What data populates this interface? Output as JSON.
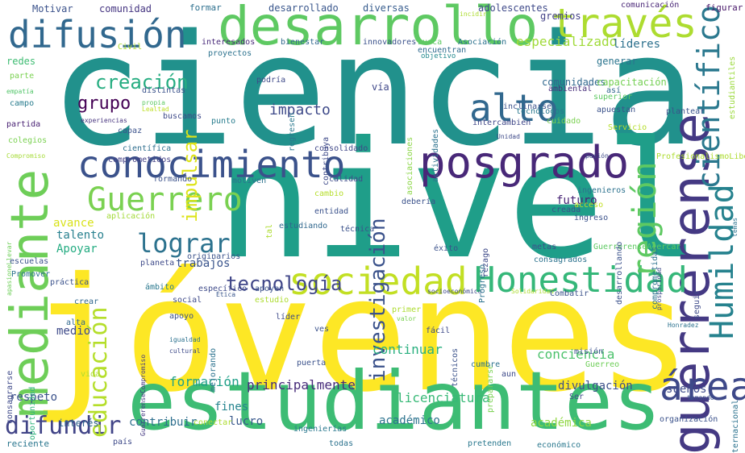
{
  "words": [
    {
      "text": "ciencia",
      "color": "#21918c"
    },
    {
      "text": "nivel",
      "color": "#1f9e89"
    },
    {
      "text": "jóvenes",
      "color": "#fde725"
    },
    {
      "text": "estudiantes",
      "color": "#3dbc74"
    },
    {
      "text": "desarrollo",
      "color": "#5ec962"
    },
    {
      "text": "mediante",
      "color": "#6ece58"
    },
    {
      "text": "conocimiento",
      "color": "#3b528b"
    },
    {
      "text": "difusión",
      "color": "#31688e"
    },
    {
      "text": "través",
      "color": "#addc30"
    },
    {
      "text": "posgrado",
      "color": "#482878"
    },
    {
      "text": "guerrerense",
      "color": "#443983"
    },
    {
      "text": "Guerrero",
      "color": "#7ad151"
    },
    {
      "text": "sociedad",
      "color": "#c2df23"
    },
    {
      "text": "Honestidad",
      "color": "#35b779"
    },
    {
      "text": "Humildad",
      "color": "#26828e"
    },
    {
      "text": "alto",
      "color": "#31688e"
    },
    {
      "text": "científico",
      "color": "#2a788e"
    },
    {
      "text": "región",
      "color": "#5ec962"
    },
    {
      "text": "área",
      "color": "#3e4989"
    },
    {
      "text": "difundir",
      "color": "#414487"
    },
    {
      "text": "lograr",
      "color": "#2c728e"
    },
    {
      "text": "educación",
      "color": "#b5de2b"
    },
    {
      "text": "creación",
      "color": "#26ad81"
    },
    {
      "text": "tecnología",
      "color": "#404688"
    },
    {
      "text": "investigación",
      "color": "#3b528b"
    },
    {
      "text": "impulsar",
      "color": "#dde318"
    },
    {
      "text": "grupo",
      "color": "#440154"
    },
    {
      "text": "especializado",
      "color": "#a0da39"
    },
    {
      "text": "impacto",
      "color": "#3e4a89"
    },
    {
      "text": "formación",
      "color": "#1fa088"
    },
    {
      "text": "principalmente",
      "color": "#472c7a"
    },
    {
      "text": "continuar",
      "color": "#2ab07f"
    },
    {
      "text": "licenciatura",
      "color": "#38b977"
    },
    {
      "text": "divulgación",
      "color": "#3c4f8a"
    },
    {
      "text": "conciencia",
      "color": "#4cc26c"
    },
    {
      "text": "sueños",
      "color": "#3e4c8a"
    },
    {
      "text": "fines",
      "color": "#25848e"
    },
    {
      "text": "respeto",
      "color": "#3b528b"
    },
    {
      "text": "contribuir",
      "color": "#2e6f8e"
    },
    {
      "text": "lucro",
      "color": "#38588c"
    },
    {
      "text": "académico",
      "color": "#2c738e"
    },
    {
      "text": "académica",
      "color": "#90d743"
    },
    {
      "text": "interés",
      "color": "#31668e"
    },
    {
      "text": "futuro",
      "color": "#482475"
    },
    {
      "text": "avance",
      "color": "#d8e219"
    },
    {
      "text": "trabajos",
      "color": "#3a548c"
    },
    {
      "text": "talento",
      "color": "#27808e"
    },
    {
      "text": "Apoyar",
      "color": "#25ac82"
    },
    {
      "text": "medio",
      "color": "#3e4a89"
    },
    {
      "text": "comunidades",
      "color": "#31688e"
    },
    {
      "text": "capacitación",
      "color": "#75d054"
    },
    {
      "text": "gremios",
      "color": "#424086"
    },
    {
      "text": "líderes",
      "color": "#2d718e"
    },
    {
      "text": "generar",
      "color": "#2b748e"
    },
    {
      "text": "vía",
      "color": "#3f4889"
    },
    {
      "text": "Motivar",
      "color": "#3b528b"
    },
    {
      "text": "comunidad",
      "color": "#453581"
    },
    {
      "text": "formar",
      "color": "#2d708e"
    },
    {
      "text": "desarrollado",
      "color": "#39568c"
    },
    {
      "text": "diversas",
      "color": "#365c8d"
    },
    {
      "text": "adolescentes",
      "color": "#3e4989"
    },
    {
      "text": "comunicación",
      "color": "#482576"
    },
    {
      "text": "figurar",
      "color": "#48186a"
    },
    {
      "text": "estudiantiles",
      "color": "#9bd93c"
    },
    {
      "text": "incidir",
      "color": "#addc30"
    },
    {
      "text": "interesados",
      "color": "#482979"
    },
    {
      "text": "bienestar",
      "color": "#31688e"
    },
    {
      "text": "innovadores",
      "color": "#3b528b"
    },
    {
      "text": "Asociación",
      "color": "#2c728e"
    },
    {
      "text": "busca",
      "color": "#5ec962"
    },
    {
      "text": "encuentran",
      "color": "#306a8e"
    },
    {
      "text": "objetivo",
      "color": "#23898e"
    },
    {
      "text": "redes",
      "color": "#3fbc73"
    },
    {
      "text": "parte",
      "color": "#7ad151"
    },
    {
      "text": "empatía",
      "color": "#52c569"
    },
    {
      "text": "campo",
      "color": "#287c8e"
    },
    {
      "text": "partida",
      "color": "#482173"
    },
    {
      "text": "colegios",
      "color": "#7ad151"
    },
    {
      "text": "Compromiso",
      "color": "#a5db36"
    },
    {
      "text": "apasioneLlevar",
      "color": "#6ece58"
    },
    {
      "text": "consagrarse",
      "color": "#3e4989"
    },
    {
      "text": "oportunidad",
      "color": "#2fb47c"
    },
    {
      "text": "reciente",
      "color": "#2a768e"
    },
    {
      "text": "Civil",
      "color": "#addc30"
    },
    {
      "text": "proyectos",
      "color": "#2c728e"
    },
    {
      "text": "podría",
      "color": "#3e4a89"
    },
    {
      "text": "así",
      "color": "#31688e"
    },
    {
      "text": "superior",
      "color": "#5ec962"
    },
    {
      "text": "ambiental",
      "color": "#472d7b"
    },
    {
      "text": "inclinarse",
      "color": "#3b528b"
    },
    {
      "text": "intercambien",
      "color": "#3f4788"
    },
    {
      "text": "actividades",
      "color": "#2c728e"
    },
    {
      "text": "asociaciones",
      "color": "#8bd646"
    },
    {
      "text": "contribuya",
      "color": "#3e4a89"
    },
    {
      "text": "regresen",
      "color": "#2a788e"
    },
    {
      "text": "punto",
      "color": "#287d8e"
    },
    {
      "text": "distintas",
      "color": "#3b528b"
    },
    {
      "text": "propia",
      "color": "#5ec962"
    },
    {
      "text": "Lealtad",
      "color": "#bddf26"
    },
    {
      "text": "buscamos",
      "color": "#3e4a89"
    },
    {
      "text": "experiencias",
      "color": "#46337e"
    },
    {
      "text": "capaz",
      "color": "#3b528b"
    },
    {
      "text": "científica",
      "color": "#2e6e8e"
    },
    {
      "text": "consolidado",
      "color": "#3f4788"
    },
    {
      "text": "comprometidos",
      "color": "#423f85"
    },
    {
      "text": "formando",
      "color": "#3b528b"
    },
    {
      "text": "motiven",
      "color": "#2c728e"
    },
    {
      "text": "cambio",
      "color": "#b5de2b"
    },
    {
      "text": "calidad",
      "color": "#3e4c8a"
    },
    {
      "text": "entidad",
      "color": "#3b528b"
    },
    {
      "text": "estudiando",
      "color": "#31688e"
    },
    {
      "text": "técnica",
      "color": "#3b528b"
    },
    {
      "text": "tal",
      "color": "#addc30"
    },
    {
      "text": "aplicación",
      "color": "#a2da37"
    },
    {
      "text": "originarios",
      "color": "#3b528b"
    },
    {
      "text": "planeta",
      "color": "#3e4a89"
    },
    {
      "text": "escuelas",
      "color": "#3b528b"
    },
    {
      "text": "Promover",
      "color": "#2c738e"
    },
    {
      "text": "práctica",
      "color": "#3b528b"
    },
    {
      "text": "ámbito",
      "color": "#2a788e"
    },
    {
      "text": "específico",
      "color": "#3e4a89"
    },
    {
      "text": "apoyen",
      "color": "#3b528b"
    },
    {
      "text": "estudio",
      "color": "#addc30"
    },
    {
      "text": "Ética",
      "color": "#39568c"
    },
    {
      "text": "social",
      "color": "#3e4a89"
    },
    {
      "text": "apoyo",
      "color": "#3b528b"
    },
    {
      "text": "líder",
      "color": "#3e4a89"
    },
    {
      "text": "ves",
      "color": "#3b528b"
    },
    {
      "text": "crear",
      "color": "#31688e"
    },
    {
      "text": "igualdad",
      "color": "#2c728e"
    },
    {
      "text": "alta",
      "color": "#31688e"
    },
    {
      "text": "mejorando",
      "color": "#2c728e"
    },
    {
      "text": "cultural",
      "color": "#3e4a89"
    },
    {
      "text": "GuerrerenseCompromiso",
      "color": "#453882"
    },
    {
      "text": "vida",
      "color": "#addc30"
    },
    {
      "text": "puerta",
      "color": "#3b528b"
    },
    {
      "text": "conectar",
      "color": "#addc30"
    },
    {
      "text": "ingenierías",
      "color": "#2a788e"
    },
    {
      "text": "todas",
      "color": "#2c728e"
    },
    {
      "text": "país",
      "color": "#3e4a89"
    },
    {
      "text": "pretenden",
      "color": "#2a788e"
    },
    {
      "text": "económico",
      "color": "#2a788e"
    },
    {
      "text": "organización",
      "color": "#3b528b"
    },
    {
      "text": "Ser",
      "color": "#3e4a89"
    },
    {
      "text": "tomando",
      "color": "#3b528b"
    },
    {
      "text": "internacional",
      "color": "#2c728e"
    },
    {
      "text": "Honradez",
      "color": "#2c728e"
    },
    {
      "text": "Guerreo",
      "color": "#6ece58"
    },
    {
      "text": "misión",
      "color": "#3b528b"
    },
    {
      "text": "aun",
      "color": "#3e4a89"
    },
    {
      "text": "prepararse",
      "color": "#7ad151"
    },
    {
      "text": "cumbre",
      "color": "#2c728e"
    },
    {
      "text": "técnicos",
      "color": "#3b528b"
    },
    {
      "text": "socioeconómico",
      "color": "#3e4a89"
    },
    {
      "text": "Solidaridad",
      "color": "#addc30"
    },
    {
      "text": "Combatir",
      "color": "#3b528b"
    },
    {
      "text": "primer",
      "color": "#addc30"
    },
    {
      "text": "valor",
      "color": "#7ad151"
    },
    {
      "text": "fácil",
      "color": "#3e4a89"
    },
    {
      "text": "Progreso",
      "color": "#2c728e"
    },
    {
      "text": "éxito",
      "color": "#3b528b"
    },
    {
      "text": "rezago",
      "color": "#3e4a89"
    },
    {
      "text": "consagrados",
      "color": "#2c728e"
    },
    {
      "text": "metas",
      "color": "#3b528b"
    },
    {
      "text": "GuerrerenseAcercar",
      "color": "#5ec962"
    },
    {
      "text": "prosperidad",
      "color": "#3e4a89"
    },
    {
      "text": "desarrollando",
      "color": "#3b528b"
    },
    {
      "text": "comprometidas",
      "color": "#2c728e"
    },
    {
      "text": "seguir",
      "color": "#3e4a89"
    },
    {
      "text": "ingreso",
      "color": "#3b528b"
    },
    {
      "text": "acceso",
      "color": "#c2df23"
    },
    {
      "text": "creada",
      "color": "#3b528b"
    },
    {
      "text": "ingenieros",
      "color": "#2c728e"
    },
    {
      "text": "debería",
      "color": "#3b528b"
    },
    {
      "text": "Servicio",
      "color": "#b5de2b"
    },
    {
      "text": "pasión",
      "color": "#3e4a89"
    },
    {
      "text": "ProfesionalismoLibertad",
      "color": "#addc30"
    },
    {
      "text": "temas",
      "color": "#2c728e"
    },
    {
      "text": "plantear",
      "color": "#3b528b"
    },
    {
      "text": "cuidado",
      "color": "#7ad151"
    },
    {
      "text": "apuestan",
      "color": "#3b528b"
    },
    {
      "text": "tecnólogos",
      "color": "#2a788e"
    },
    {
      "text": "Unidad",
      "color": "#3e4a89"
    }
  ]
}
